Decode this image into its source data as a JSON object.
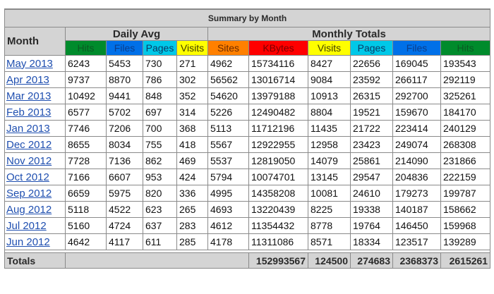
{
  "title": "Summary by Month",
  "headers": {
    "month": "Month",
    "daily_avg": "Daily Avg",
    "monthly_totals": "Monthly Totals"
  },
  "columns": {
    "daily": [
      {
        "label": "Hits",
        "bg": "#008b2c",
        "fg": "#0a5a23"
      },
      {
        "label": "Files",
        "bg": "#0070e8",
        "fg": "#0b3e8c"
      },
      {
        "label": "Pages",
        "bg": "#00c8e8",
        "fg": "#0a3a66"
      },
      {
        "label": "Visits",
        "bg": "#ffff00",
        "fg": "#403d00"
      }
    ],
    "monthly": [
      {
        "label": "Sites",
        "bg": "#ff8000",
        "fg": "#6b2a00"
      },
      {
        "label": "KBytes",
        "bg": "#ff0000",
        "fg": "#7a0000"
      },
      {
        "label": "Visits",
        "bg": "#ffff00",
        "fg": "#403d00"
      },
      {
        "label": "Pages",
        "bg": "#00c8e8",
        "fg": "#0a3a66"
      },
      {
        "label": "Files",
        "bg": "#0070e8",
        "fg": "#0b3e8c"
      },
      {
        "label": "Hits",
        "bg": "#008b2c",
        "fg": "#0a5a23"
      }
    ]
  },
  "rows": [
    {
      "month": "May 2013",
      "hits": "6243",
      "files": "5453",
      "pages": "730",
      "visits": "271",
      "sites": "4962",
      "kbytes": "15734116",
      "m_visits": "8427",
      "m_pages": "22656",
      "m_files": "169045",
      "m_hits": "193543"
    },
    {
      "month": "Apr 2013",
      "hits": "9737",
      "files": "8870",
      "pages": "786",
      "visits": "302",
      "sites": "56562",
      "kbytes": "13016714",
      "m_visits": "9084",
      "m_pages": "23592",
      "m_files": "266117",
      "m_hits": "292119"
    },
    {
      "month": "Mar 2013",
      "hits": "10492",
      "files": "9441",
      "pages": "848",
      "visits": "352",
      "sites": "54620",
      "kbytes": "13979188",
      "m_visits": "10913",
      "m_pages": "26315",
      "m_files": "292700",
      "m_hits": "325261"
    },
    {
      "month": "Feb 2013",
      "hits": "6577",
      "files": "5702",
      "pages": "697",
      "visits": "314",
      "sites": "5226",
      "kbytes": "12490482",
      "m_visits": "8804",
      "m_pages": "19521",
      "m_files": "159670",
      "m_hits": "184170"
    },
    {
      "month": "Jan 2013",
      "hits": "7746",
      "files": "7206",
      "pages": "700",
      "visits": "368",
      "sites": "5113",
      "kbytes": "11712196",
      "m_visits": "11435",
      "m_pages": "21722",
      "m_files": "223414",
      "m_hits": "240129"
    },
    {
      "month": "Dec 2012",
      "hits": "8655",
      "files": "8034",
      "pages": "755",
      "visits": "418",
      "sites": "5567",
      "kbytes": "12922955",
      "m_visits": "12958",
      "m_pages": "23423",
      "m_files": "249074",
      "m_hits": "268308"
    },
    {
      "month": "Nov 2012",
      "hits": "7728",
      "files": "7136",
      "pages": "862",
      "visits": "469",
      "sites": "5537",
      "kbytes": "12819050",
      "m_visits": "14079",
      "m_pages": "25861",
      "m_files": "214090",
      "m_hits": "231866"
    },
    {
      "month": "Oct 2012",
      "hits": "7166",
      "files": "6607",
      "pages": "953",
      "visits": "424",
      "sites": "5794",
      "kbytes": "10074701",
      "m_visits": "13145",
      "m_pages": "29547",
      "m_files": "204836",
      "m_hits": "222159"
    },
    {
      "month": "Sep 2012",
      "hits": "6659",
      "files": "5975",
      "pages": "820",
      "visits": "336",
      "sites": "4995",
      "kbytes": "14358208",
      "m_visits": "10081",
      "m_pages": "24610",
      "m_files": "179273",
      "m_hits": "199787"
    },
    {
      "month": "Aug 2012",
      "hits": "5118",
      "files": "4522",
      "pages": "623",
      "visits": "265",
      "sites": "4693",
      "kbytes": "13220439",
      "m_visits": "8225",
      "m_pages": "19338",
      "m_files": "140187",
      "m_hits": "158662"
    },
    {
      "month": "Jul 2012",
      "hits": "5160",
      "files": "4724",
      "pages": "637",
      "visits": "283",
      "sites": "4612",
      "kbytes": "11354432",
      "m_visits": "8778",
      "m_pages": "19764",
      "m_files": "146450",
      "m_hits": "159968"
    },
    {
      "month": "Jun 2012",
      "hits": "4642",
      "files": "4117",
      "pages": "611",
      "visits": "285",
      "sites": "4178",
      "kbytes": "11311086",
      "m_visits": "8571",
      "m_pages": "18334",
      "m_files": "123517",
      "m_hits": "139289"
    }
  ],
  "totals": {
    "label": "Totals",
    "kbytes": "152993567",
    "visits": "124500",
    "pages": "274683",
    "files": "2368373",
    "hits": "2615261"
  }
}
